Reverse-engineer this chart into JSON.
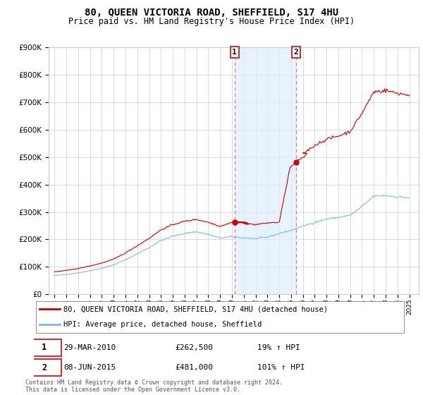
{
  "title": "80, QUEEN VICTORIA ROAD, SHEFFIELD, S17 4HU",
  "subtitle": "Price paid vs. HM Land Registry's House Price Index (HPI)",
  "footer": "Contains HM Land Registry data © Crown copyright and database right 2024.\nThis data is licensed under the Open Government Licence v3.0.",
  "legend_line1": "80, QUEEN VICTORIA ROAD, SHEFFIELD, S17 4HU (detached house)",
  "legend_line2": "HPI: Average price, detached house, Sheffield",
  "transaction1_date": "29-MAR-2010",
  "transaction1_price": "£262,500",
  "transaction1_hpi": "19% ↑ HPI",
  "transaction2_date": "08-JUN-2015",
  "transaction2_price": "£481,000",
  "transaction2_hpi": "101% ↑ HPI",
  "ylim": [
    0,
    900000
  ],
  "yticks": [
    0,
    100000,
    200000,
    300000,
    400000,
    500000,
    600000,
    700000,
    800000,
    900000
  ],
  "hpi_color": "#7db8e8",
  "price_color": "#cc0000",
  "vline_color": "#e87878",
  "shade_color": "#ddeeff",
  "bg_color": "#ffffff",
  "grid_color": "#cccccc",
  "sale1_x": 2010.22,
  "sale1_y": 262500,
  "sale2_x": 2015.44,
  "sale2_y": 481000,
  "xlim_min": 1994.5,
  "xlim_max": 2025.8
}
